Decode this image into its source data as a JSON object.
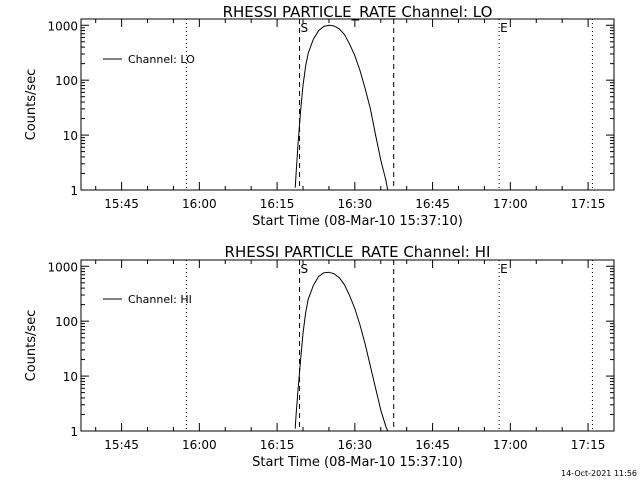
{
  "footer": {
    "timestamp": "14-Oct-2021 11:56"
  },
  "chart_data": [
    {
      "type": "line",
      "title": "RHESSI PARTICLE_RATE Channel: LO",
      "xlabel": "Start Time (08-Mar-10 15:37:10)",
      "ylabel": "Counts/sec",
      "y_scale": "log",
      "ylim": [
        1,
        1300
      ],
      "y_ticks": [
        {
          "value": 1,
          "label": "1"
        },
        {
          "value": 10,
          "label": "10"
        },
        {
          "value": 100,
          "label": "100"
        },
        {
          "value": 1000,
          "label": "1000"
        }
      ],
      "x_ticks": [
        {
          "value": "15:45",
          "label": "15:45"
        },
        {
          "value": "16:00",
          "label": "16:00"
        },
        {
          "value": "16:15",
          "label": "16:15"
        },
        {
          "value": "16:30",
          "label": "16:30"
        },
        {
          "value": "16:45",
          "label": "16:45"
        },
        {
          "value": "17:00",
          "label": "17:00"
        },
        {
          "value": "17:15",
          "label": "17:15"
        }
      ],
      "xlim": [
        "15:37:10",
        "17:20:00"
      ],
      "legend": {
        "placement": "top-left",
        "label": "Channel: LO"
      },
      "markers": [
        {
          "time": "15:57:30",
          "style": "dotted",
          "label": ""
        },
        {
          "time": "16:19:20",
          "style": "dashed",
          "label": "S"
        },
        {
          "time": "16:37:30",
          "style": "dashed",
          "label": ""
        },
        {
          "time": "16:57:50",
          "style": "dotted",
          "label": "E"
        },
        {
          "time": "17:15:50",
          "style": "dotted",
          "label": ""
        }
      ],
      "series": [
        {
          "name": "Channel: LO",
          "x": [
            "16:18:30",
            "16:18:40",
            "16:19:00",
            "16:19:30",
            "16:20:00",
            "16:20:30",
            "16:21:00",
            "16:22:00",
            "16:23:00",
            "16:24:00",
            "16:25:00",
            "16:26:00",
            "16:27:00",
            "16:28:00",
            "16:29:00",
            "16:30:00",
            "16:31:00",
            "16:32:00",
            "16:33:00",
            "16:34:00",
            "16:35:00",
            "16:36:00",
            "16:36:20"
          ],
          "y": [
            1.1,
            2,
            6,
            25,
            80,
            180,
            310,
            560,
            800,
            950,
            1000,
            970,
            860,
            680,
            450,
            280,
            150,
            70,
            30,
            10,
            3.5,
            1.5,
            1.0
          ]
        }
      ]
    },
    {
      "type": "line",
      "title": "RHESSI PARTICLE_RATE Channel: HI",
      "xlabel": "Start Time (08-Mar-10 15:37:10)",
      "ylabel": "Counts/sec",
      "y_scale": "log",
      "ylim": [
        1,
        1300
      ],
      "y_ticks": [
        {
          "value": 1,
          "label": "1"
        },
        {
          "value": 10,
          "label": "10"
        },
        {
          "value": 100,
          "label": "100"
        },
        {
          "value": 1000,
          "label": "1000"
        }
      ],
      "x_ticks": [
        {
          "value": "15:45",
          "label": "15:45"
        },
        {
          "value": "16:00",
          "label": "16:00"
        },
        {
          "value": "16:15",
          "label": "16:15"
        },
        {
          "value": "16:30",
          "label": "16:30"
        },
        {
          "value": "16:45",
          "label": "16:45"
        },
        {
          "value": "17:00",
          "label": "17:00"
        },
        {
          "value": "17:15",
          "label": "17:15"
        }
      ],
      "xlim": [
        "15:37:10",
        "17:20:00"
      ],
      "legend": {
        "placement": "top-left",
        "label": "Channel: HI"
      },
      "markers": [
        {
          "time": "15:57:30",
          "style": "dotted",
          "label": ""
        },
        {
          "time": "16:19:20",
          "style": "dashed",
          "label": "S"
        },
        {
          "time": "16:37:30",
          "style": "dashed",
          "label": ""
        },
        {
          "time": "16:57:50",
          "style": "dotted",
          "label": "E"
        },
        {
          "time": "17:15:50",
          "style": "dotted",
          "label": ""
        }
      ],
      "series": [
        {
          "name": "Channel: HI",
          "x": [
            "16:18:30",
            "16:18:40",
            "16:19:00",
            "16:19:30",
            "16:20:00",
            "16:20:30",
            "16:21:00",
            "16:22:00",
            "16:23:00",
            "16:24:00",
            "16:25:00",
            "16:26:00",
            "16:27:00",
            "16:28:00",
            "16:29:00",
            "16:30:00",
            "16:31:00",
            "16:32:00",
            "16:33:00",
            "16:34:00",
            "16:35:00",
            "16:36:00",
            "16:36:20"
          ],
          "y": [
            1.1,
            2,
            5,
            18,
            60,
            140,
            250,
            450,
            650,
            760,
            780,
            730,
            620,
            460,
            290,
            170,
            85,
            38,
            15,
            6,
            2.4,
            1.2,
            1.0
          ]
        }
      ]
    }
  ]
}
